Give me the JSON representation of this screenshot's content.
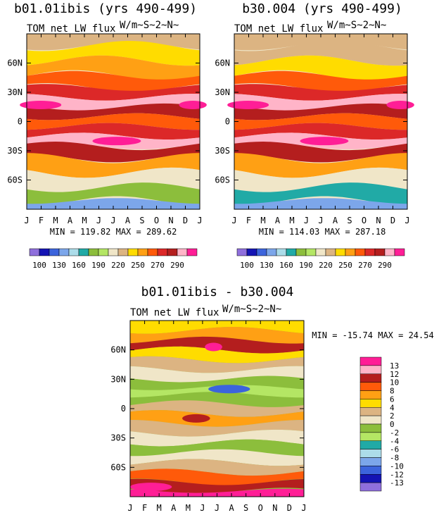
{
  "chart_data": [
    {
      "type": "heatmap",
      "title": "b01.01ibis (yrs 490-499)",
      "subtitle": "TOM net LW flux",
      "units": "W/m~S~2~N~",
      "x": [
        "J",
        "F",
        "M",
        "A",
        "M",
        "J",
        "J",
        "A",
        "S",
        "O",
        "N",
        "D",
        "J"
      ],
      "y_ticks": [
        "60N",
        "30N",
        "0",
        "30S",
        "60S"
      ],
      "stats": "MIN = 119.82 MAX = 289.62",
      "colorbar": {
        "labels": [
          "100",
          "130",
          "160",
          "190",
          "220",
          "250",
          "270",
          "290"
        ],
        "colors": [
          "#8f6fdc",
          "#1414b4",
          "#3c64dc",
          "#7ca6ea",
          "#acdce9",
          "#21aaa6",
          "#8cbe3c",
          "#b4e664",
          "#f0e6c8",
          "#dcb482",
          "#ffdc00",
          "#ffa014",
          "#ff5a0a",
          "#dc2828",
          "#b41e1e",
          "#ffb4c8",
          "#ff1e96"
        ]
      },
      "bands": [
        {
          "lat": 85,
          "val": 210
        },
        {
          "lat": 70,
          "val": 215
        },
        {
          "lat": 55,
          "val": 225
        },
        {
          "lat": 40,
          "val": 240
        },
        {
          "lat": 30,
          "val": 255
        },
        {
          "lat": 20,
          "val": 275
        },
        {
          "lat": 10,
          "val": 265
        },
        {
          "lat": 0,
          "val": 245
        },
        {
          "lat": -10,
          "val": 260
        },
        {
          "lat": -20,
          "val": 280
        },
        {
          "lat": -30,
          "val": 265
        },
        {
          "lat": -45,
          "val": 235
        },
        {
          "lat": -60,
          "val": 200
        },
        {
          "lat": -75,
          "val": 170
        },
        {
          "lat": -88,
          "val": 140
        }
      ]
    },
    {
      "type": "heatmap",
      "title": "b30.004 (yrs 490-499)",
      "subtitle": "TOM net LW flux",
      "units": "W/m~S~2~N~",
      "x": [
        "J",
        "F",
        "M",
        "A",
        "M",
        "J",
        "J",
        "A",
        "S",
        "O",
        "N",
        "D",
        "J"
      ],
      "y_ticks": [
        "60N",
        "30N",
        "0",
        "30S",
        "60S"
      ],
      "stats": "MIN = 114.03 MAX = 287.18",
      "colorbar": {
        "labels": [
          "100",
          "130",
          "160",
          "190",
          "220",
          "250",
          "270",
          "290"
        ],
        "colors": [
          "#8f6fdc",
          "#1414b4",
          "#3c64dc",
          "#7ca6ea",
          "#acdce9",
          "#21aaa6",
          "#8cbe3c",
          "#b4e664",
          "#f0e6c8",
          "#dcb482",
          "#ffdc00",
          "#ffa014",
          "#ff5a0a",
          "#dc2828",
          "#b41e1e",
          "#ffb4c8",
          "#ff1e96"
        ]
      },
      "bands": [
        {
          "lat": 85,
          "val": 205
        },
        {
          "lat": 70,
          "val": 212
        },
        {
          "lat": 55,
          "val": 222
        },
        {
          "lat": 40,
          "val": 238
        },
        {
          "lat": 30,
          "val": 255
        },
        {
          "lat": 20,
          "val": 275
        },
        {
          "lat": 10,
          "val": 262
        },
        {
          "lat": 0,
          "val": 245
        },
        {
          "lat": -10,
          "val": 258
        },
        {
          "lat": -20,
          "val": 278
        },
        {
          "lat": -30,
          "val": 262
        },
        {
          "lat": -45,
          "val": 232
        },
        {
          "lat": -60,
          "val": 198
        },
        {
          "lat": -75,
          "val": 165
        },
        {
          "lat": -88,
          "val": 130
        }
      ]
    },
    {
      "type": "heatmap",
      "title": "b01.01ibis - b30.004",
      "subtitle": "TOM net LW flux",
      "units": "W/m~S~2~N~",
      "x": [
        "J",
        "F",
        "M",
        "A",
        "M",
        "J",
        "J",
        "A",
        "S",
        "O",
        "N",
        "D",
        "J"
      ],
      "y_ticks": [
        "60N",
        "30N",
        "0",
        "30S",
        "60S"
      ],
      "stats": "MIN = -15.74 MAX = 24.54",
      "colorbar": {
        "labels": [
          "13",
          "12",
          "10",
          "8",
          "6",
          "4",
          "2",
          "0",
          "-2",
          "-4",
          "-6",
          "-8",
          "-10",
          "-12",
          "-13"
        ],
        "colors": [
          "#ff1e96",
          "#ffb4c8",
          "#b41e1e",
          "#ff5a0a",
          "#ffa014",
          "#ffdc00",
          "#dcb482",
          "#f0e6c8",
          "#8cbe3c",
          "#b4e664",
          "#21aaa6",
          "#acdce9",
          "#7ca6ea",
          "#3c64dc",
          "#1414b4",
          "#8f6fdc"
        ]
      },
      "bands": [
        {
          "lat": 85,
          "val": 4
        },
        {
          "lat": 75,
          "val": 6
        },
        {
          "lat": 65,
          "val": 10
        },
        {
          "lat": 55,
          "val": 4
        },
        {
          "lat": 45,
          "val": 2
        },
        {
          "lat": 35,
          "val": 0
        },
        {
          "lat": 25,
          "val": -2
        },
        {
          "lat": 18,
          "val": -4
        },
        {
          "lat": 10,
          "val": -2
        },
        {
          "lat": 0,
          "val": 2
        },
        {
          "lat": -10,
          "val": 6
        },
        {
          "lat": -20,
          "val": 2
        },
        {
          "lat": -30,
          "val": 0
        },
        {
          "lat": -40,
          "val": -2
        },
        {
          "lat": -50,
          "val": 0
        },
        {
          "lat": -60,
          "val": 2
        },
        {
          "lat": -70,
          "val": 8
        },
        {
          "lat": -80,
          "val": 10
        },
        {
          "lat": -88,
          "val": 13
        }
      ]
    }
  ]
}
